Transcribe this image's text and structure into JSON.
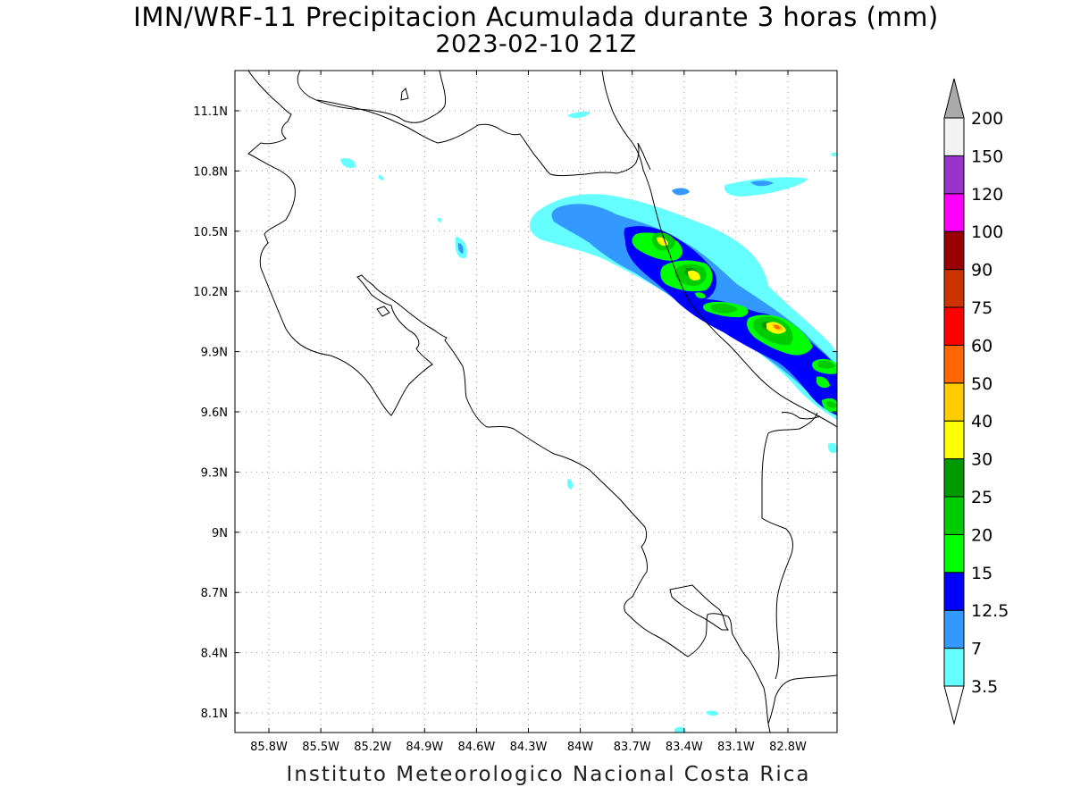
{
  "title": "IMN/WRF-11 Precipitacion Acumulada durante 3 horas (mm)",
  "subtitle": "2023-02-10 21Z",
  "footer": "Instituto Meteorologico Nacional Costa Rica",
  "lat_ticks": [
    "11.1N",
    "10.8N",
    "10.5N",
    "10.2N",
    "9.9N",
    "9.6N",
    "9.3N",
    "9N",
    "8.7N",
    "8.4N",
    "8.1N"
  ],
  "lon_ticks": [
    "85.8W",
    "85.5W",
    "85.2W",
    "84.9W",
    "84.6W",
    "84.3W",
    "84W",
    "83.7W",
    "83.4W",
    "83.1W",
    "82.8W"
  ],
  "colorbar": {
    "levels": [
      "3.5",
      "7",
      "12.5",
      "15",
      "20",
      "25",
      "30",
      "40",
      "50",
      "60",
      "75",
      "90",
      "100",
      "120",
      "150",
      "200"
    ],
    "colors": [
      "#66ffff",
      "#3399ff",
      "#0000ff",
      "#00ff00",
      "#00cc00",
      "#009900",
      "#ffff00",
      "#ffcc00",
      "#ff6600",
      "#ff0000",
      "#cc3300",
      "#990000",
      "#ff00ff",
      "#9933cc",
      "#f2f2f2"
    ],
    "top_arrow_color": "#aaaaaa",
    "bottom_arrow_color": "#ffffff"
  }
}
